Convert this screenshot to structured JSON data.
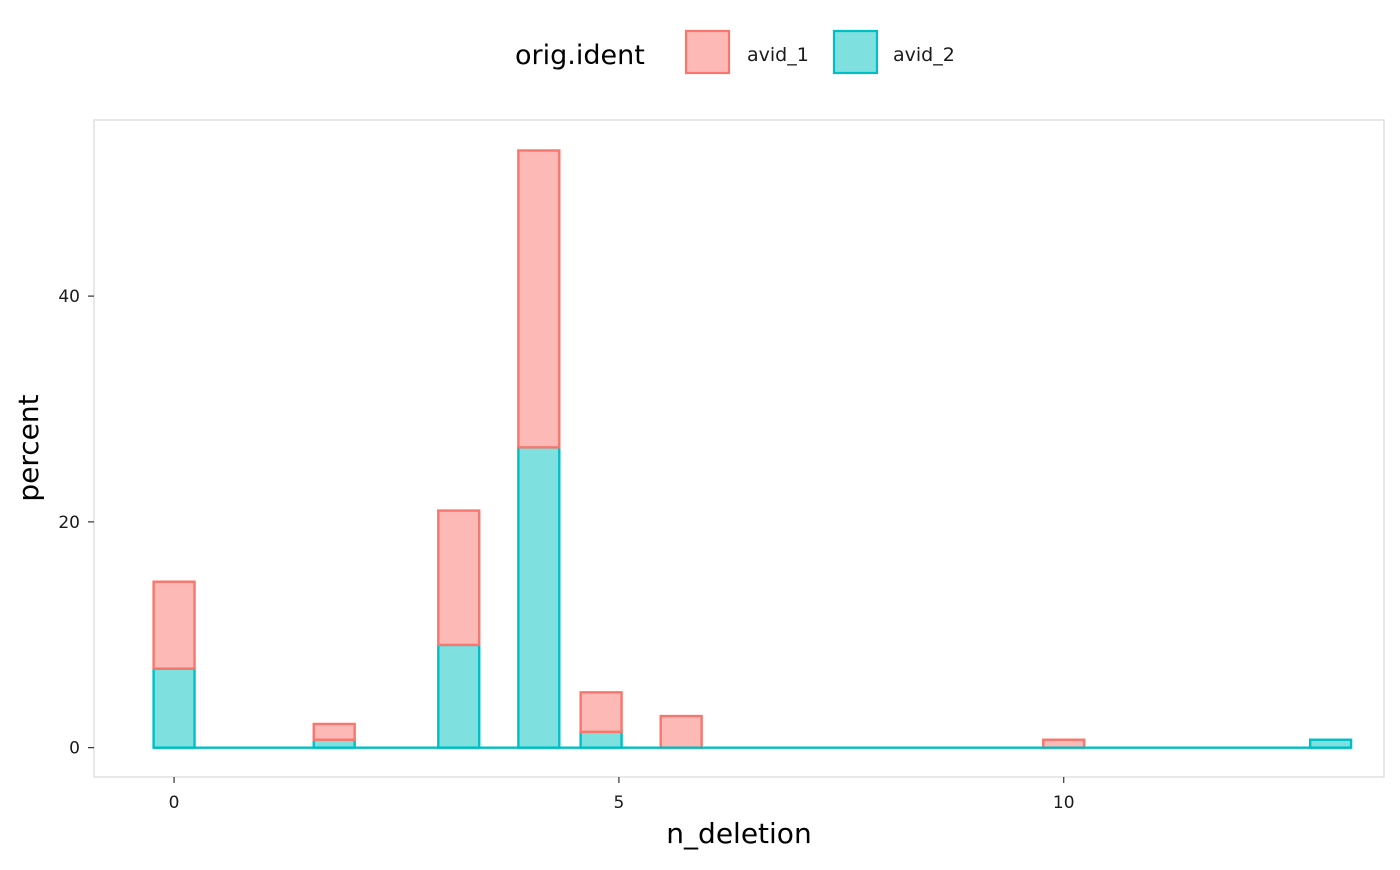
{
  "chart_data": {
    "type": "bar",
    "stacked": true,
    "xlabel": "n_deletion",
    "ylabel": "percent",
    "legend": {
      "title": "orig.ident",
      "placement": "top"
    },
    "x_ticks": [
      0,
      5,
      10
    ],
    "y_ticks": [
      0,
      20,
      40
    ],
    "xlim": [
      -0.9,
      13.6
    ],
    "ylim": [
      -2.6,
      55.6
    ],
    "bin_width": 0.46,
    "grid": false,
    "series": [
      {
        "name": "avid_2",
        "fill": "#7FE0E0",
        "stroke": "#00BFC4",
        "x": [
          0,
          1.8,
          3.2,
          4.1,
          4.8,
          5.7,
          10,
          13
        ],
        "values": [
          7.0,
          0.7,
          9.1,
          26.6,
          1.4,
          0,
          0,
          0.7
        ]
      },
      {
        "name": "avid_1",
        "fill": "#FCB9B5",
        "stroke": "#F8766D",
        "x": [
          0,
          1.8,
          3.2,
          4.1,
          4.8,
          5.7,
          10,
          13
        ],
        "values": [
          7.7,
          1.4,
          11.9,
          26.3,
          3.5,
          2.8,
          0.7,
          0
        ]
      }
    ]
  }
}
